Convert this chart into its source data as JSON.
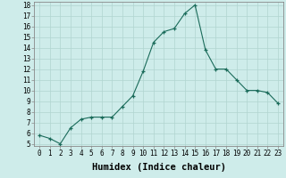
{
  "x": [
    0,
    1,
    2,
    3,
    4,
    5,
    6,
    7,
    8,
    9,
    10,
    11,
    12,
    13,
    14,
    15,
    16,
    17,
    18,
    19,
    20,
    21,
    22,
    23
  ],
  "y": [
    5.8,
    5.5,
    5.0,
    6.5,
    7.3,
    7.5,
    7.5,
    7.5,
    8.5,
    9.5,
    11.8,
    14.5,
    15.5,
    15.8,
    17.2,
    18.0,
    13.8,
    12.0,
    12.0,
    11.0,
    10.0,
    10.0,
    9.8,
    8.8
  ],
  "title": "",
  "xlabel": "Humidex (Indice chaleur)",
  "ylabel": "",
  "line_color": "#1a6b5a",
  "marker": "+",
  "bg_color": "#ceecea",
  "grid_color": "#b0d4d0",
  "ylim": [
    4.8,
    18.3
  ],
  "xlim": [
    -0.5,
    23.5
  ],
  "yticks": [
    5,
    6,
    7,
    8,
    9,
    10,
    11,
    12,
    13,
    14,
    15,
    16,
    17,
    18
  ],
  "xticks": [
    0,
    1,
    2,
    3,
    4,
    5,
    6,
    7,
    8,
    9,
    10,
    11,
    12,
    13,
    14,
    15,
    16,
    17,
    18,
    19,
    20,
    21,
    22,
    23
  ],
  "tick_fontsize": 5.5,
  "xlabel_fontsize": 7.5
}
